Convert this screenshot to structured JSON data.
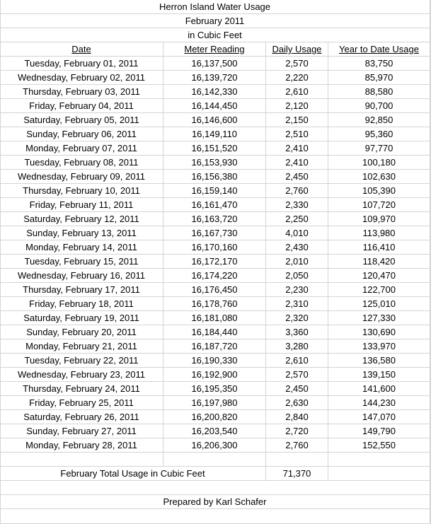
{
  "title": {
    "line1": "Herron Island Water Usage",
    "line2": "February 2011",
    "line3": "in Cubic Feet"
  },
  "headers": [
    "Date",
    "Meter Reading",
    "Daily Usage",
    "Year to Date Usage"
  ],
  "rows": [
    [
      "Tuesday, February 01, 2011",
      "16,137,500",
      "2,570",
      "83,750"
    ],
    [
      "Wednesday, February 02, 2011",
      "16,139,720",
      "2,220",
      "85,970"
    ],
    [
      "Thursday, February 03, 2011",
      "16,142,330",
      "2,610",
      "88,580"
    ],
    [
      "Friday, February 04, 2011",
      "16,144,450",
      "2,120",
      "90,700"
    ],
    [
      "Saturday, February 05, 2011",
      "16,146,600",
      "2,150",
      "92,850"
    ],
    [
      "Sunday, February 06, 2011",
      "16,149,110",
      "2,510",
      "95,360"
    ],
    [
      "Monday, February 07, 2011",
      "16,151,520",
      "2,410",
      "97,770"
    ],
    [
      "Tuesday, February 08, 2011",
      "16,153,930",
      "2,410",
      "100,180"
    ],
    [
      "Wednesday, February 09, 2011",
      "16,156,380",
      "2,450",
      "102,630"
    ],
    [
      "Thursday, February 10, 2011",
      "16,159,140",
      "2,760",
      "105,390"
    ],
    [
      "Friday, February 11, 2011",
      "16,161,470",
      "2,330",
      "107,720"
    ],
    [
      "Saturday, February 12, 2011",
      "16,163,720",
      "2,250",
      "109,970"
    ],
    [
      "Sunday, February 13, 2011",
      "16,167,730",
      "4,010",
      "113,980"
    ],
    [
      "Monday, February 14, 2011",
      "16,170,160",
      "2,430",
      "116,410"
    ],
    [
      "Tuesday, February 15, 2011",
      "16,172,170",
      "2,010",
      "118,420"
    ],
    [
      "Wednesday, February 16, 2011",
      "16,174,220",
      "2,050",
      "120,470"
    ],
    [
      "Thursday, February 17, 2011",
      "16,176,450",
      "2,230",
      "122,700"
    ],
    [
      "Friday, February 18, 2011",
      "16,178,760",
      "2,310",
      "125,010"
    ],
    [
      "Saturday, February 19, 2011",
      "16,181,080",
      "2,320",
      "127,330"
    ],
    [
      "Sunday, February 20, 2011",
      "16,184,440",
      "3,360",
      "130,690"
    ],
    [
      "Monday, February 21, 2011",
      "16,187,720",
      "3,280",
      "133,970"
    ],
    [
      "Tuesday, February 22, 2011",
      "16,190,330",
      "2,610",
      "136,580"
    ],
    [
      "Wednesday, February 23, 2011",
      "16,192,900",
      "2,570",
      "139,150"
    ],
    [
      "Thursday, February 24, 2011",
      "16,195,350",
      "2,450",
      "141,600"
    ],
    [
      "Friday, February 25, 2011",
      "16,197,980",
      "2,630",
      "144,230"
    ],
    [
      "Saturday, February 26, 2011",
      "16,200,820",
      "2,840",
      "147,070"
    ],
    [
      "Sunday, February 27, 2011",
      "16,203,540",
      "2,720",
      "149,790"
    ],
    [
      "Monday, February 28, 2011",
      "16,206,300",
      "2,760",
      "152,550"
    ]
  ],
  "total": {
    "label": "February Total Usage in Cubic Feet",
    "value": "71,370"
  },
  "footer": "Prepared by Karl Schafer"
}
